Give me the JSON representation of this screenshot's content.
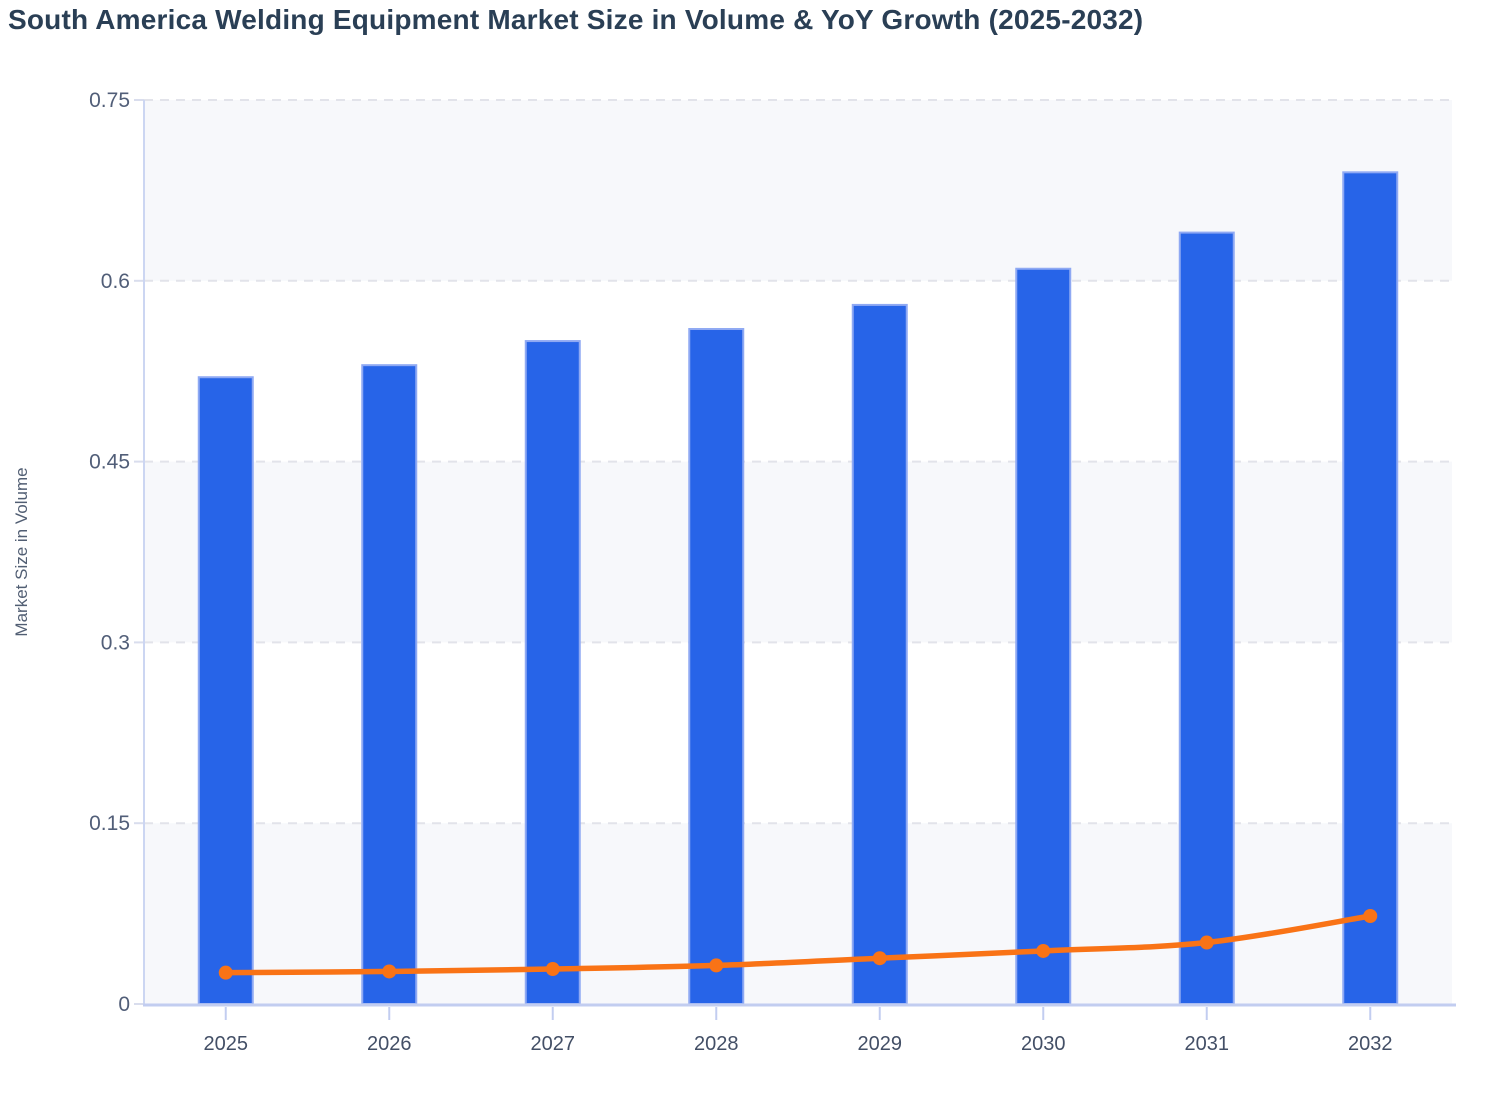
{
  "chart_data": {
    "type": "bar",
    "title": "South America Welding Equipment Market Size in Volume & YoY Growth (2025-2032)",
    "ylabel": "Market Size in Volume",
    "xlabel": "",
    "categories": [
      "2025",
      "2026",
      "2027",
      "2028",
      "2029",
      "2030",
      "2031",
      "2032"
    ],
    "series": [
      {
        "name": "Market Size in Volume",
        "type": "bar",
        "values": [
          0.52,
          0.53,
          0.55,
          0.56,
          0.58,
          0.61,
          0.64,
          0.69
        ]
      },
      {
        "name": "YoY Growth",
        "type": "line",
        "values": [
          0.026,
          0.027,
          0.029,
          0.032,
          0.038,
          0.044,
          0.051,
          0.073
        ]
      }
    ],
    "ylim": [
      0,
      0.75
    ],
    "yticks": [
      "0",
      "0.15",
      "0.3",
      "0.45",
      "0.6",
      "0.75"
    ],
    "grid": "horizontal-dashed",
    "plot_bands": "alternating horizontal bands between y gridlines",
    "legend": "none"
  },
  "colors": {
    "bar_fill": "#2764e8",
    "bar_stroke": "#8fa9f3",
    "line": "#f97316",
    "marker": "#f97316",
    "band_fill": "#f7f8fb",
    "gridline": "#e2e3ea",
    "y_axis_line": "#ccd6f2",
    "x_axis_line": "#c2cdf0",
    "y_tick_mark": "#d9dded",
    "x_tick_mark": "#c2cdf0",
    "title_text": "#2a3f55",
    "y_label_text": "#515e78",
    "x_label_text": "#434f66",
    "axis_title_text": "#515e73"
  }
}
